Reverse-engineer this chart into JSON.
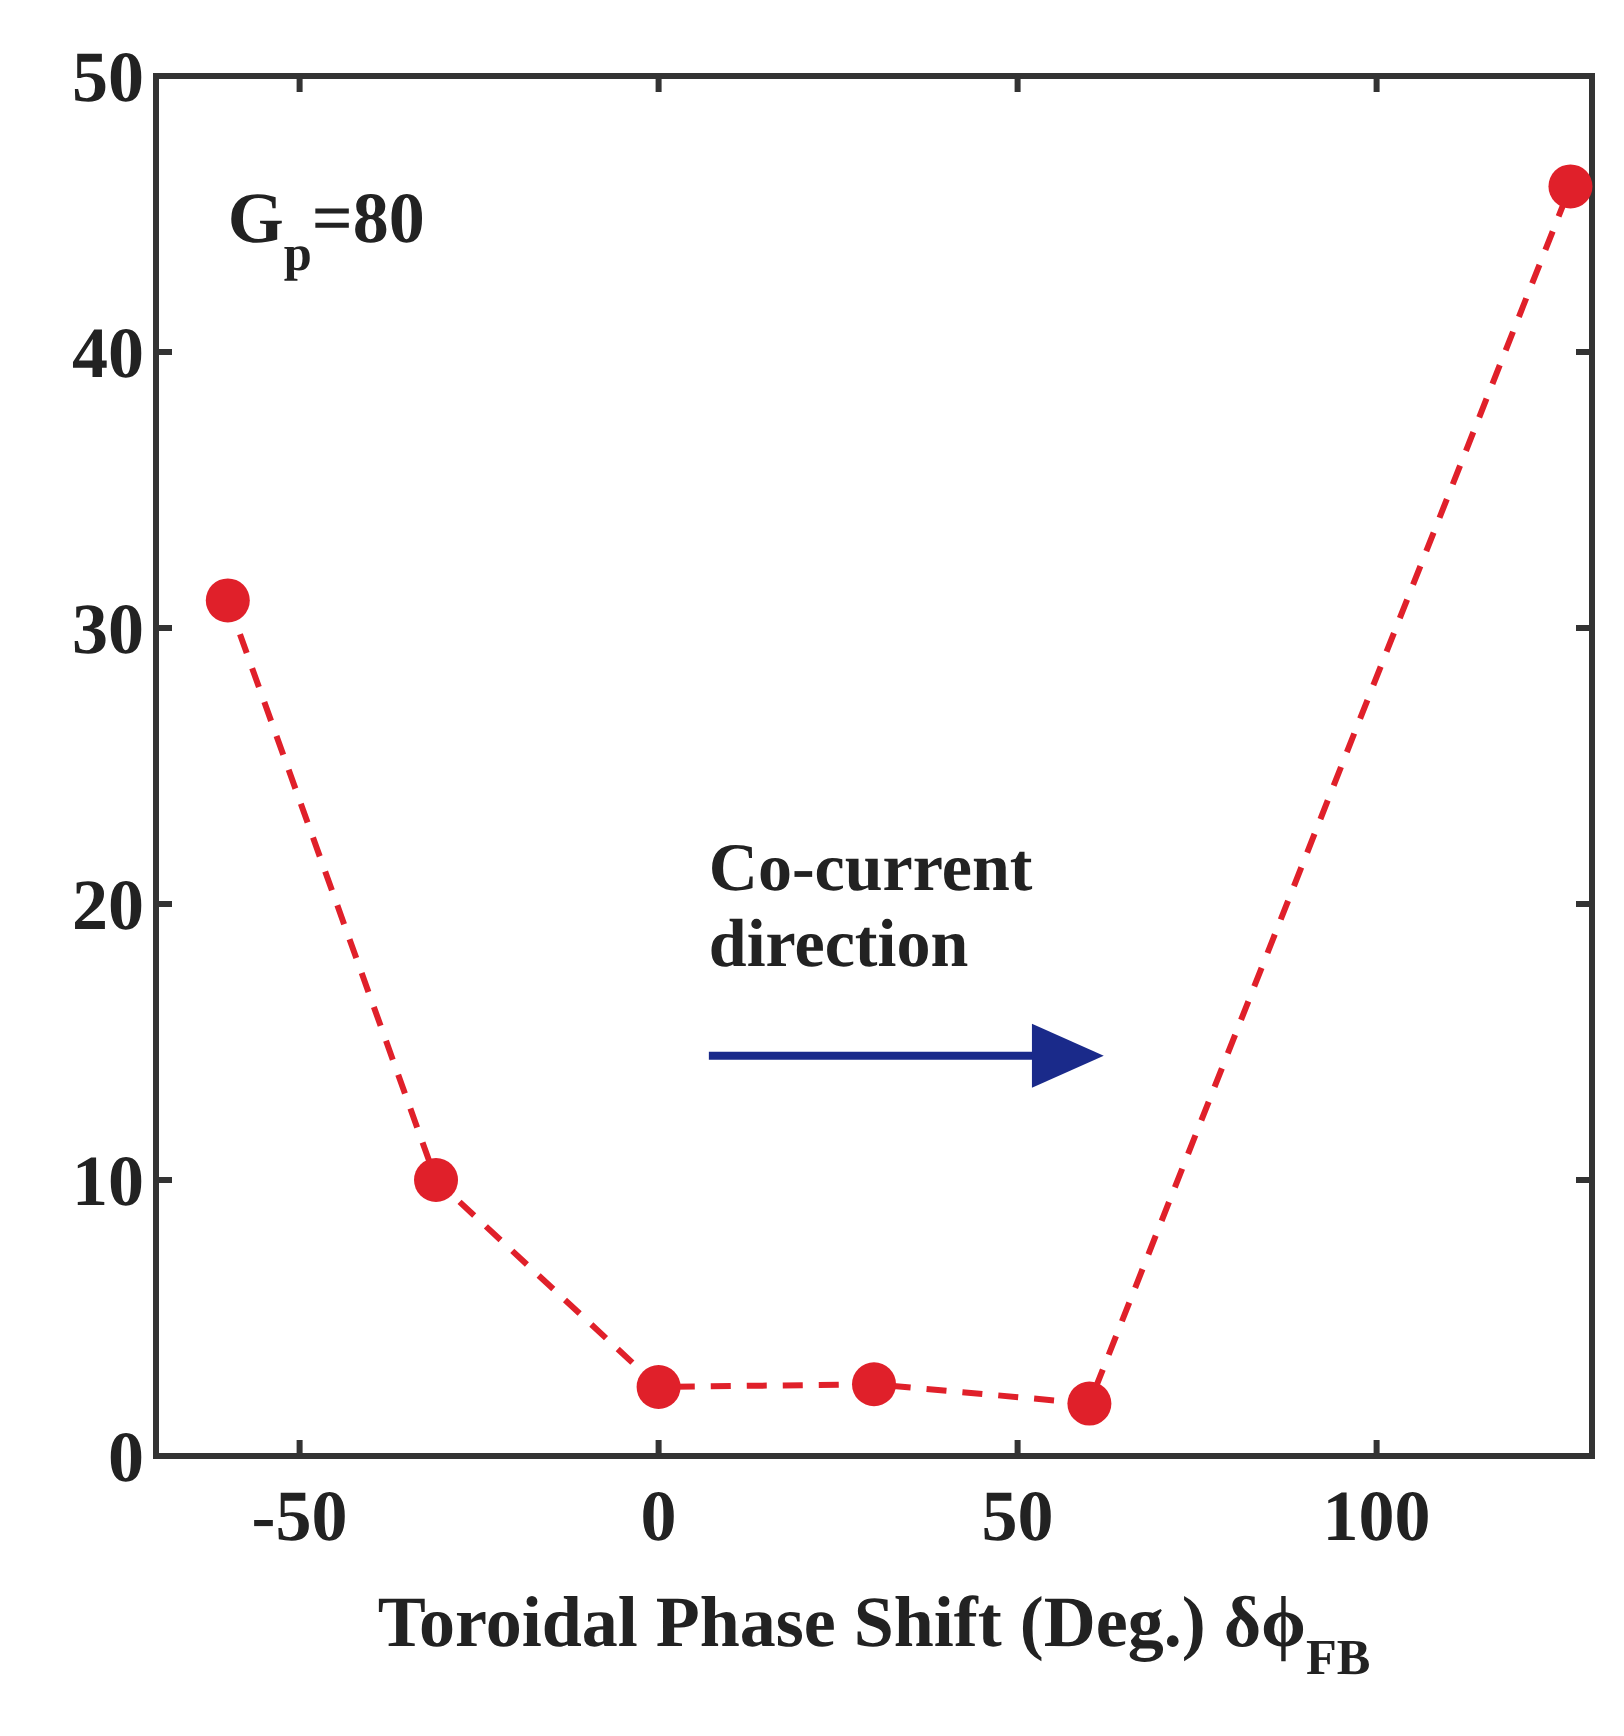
{
  "chart_data": {
    "type": "line",
    "xlabel": "Toroidal Phase Shift (Deg.) δϕ$_{FB}$",
    "x": [
      -60,
      -31,
      0,
      30,
      60,
      127
    ],
    "series": [
      {
        "color": "#e0202a",
        "values": [
          31,
          10,
          2.5,
          2.6,
          1.9,
          46
        ]
      }
    ],
    "xlim": [
      -70,
      130
    ],
    "xticks": [
      -50,
      0,
      50,
      100
    ],
    "ylim": [
      0,
      50
    ],
    "yticks": [
      0,
      10,
      20,
      30,
      40,
      50
    ],
    "marker": "circle",
    "line_style": "dashed",
    "grid": false,
    "annotations": [
      "G$_{p}$=80",
      "Co-current\ndirection"
    ]
  }
}
